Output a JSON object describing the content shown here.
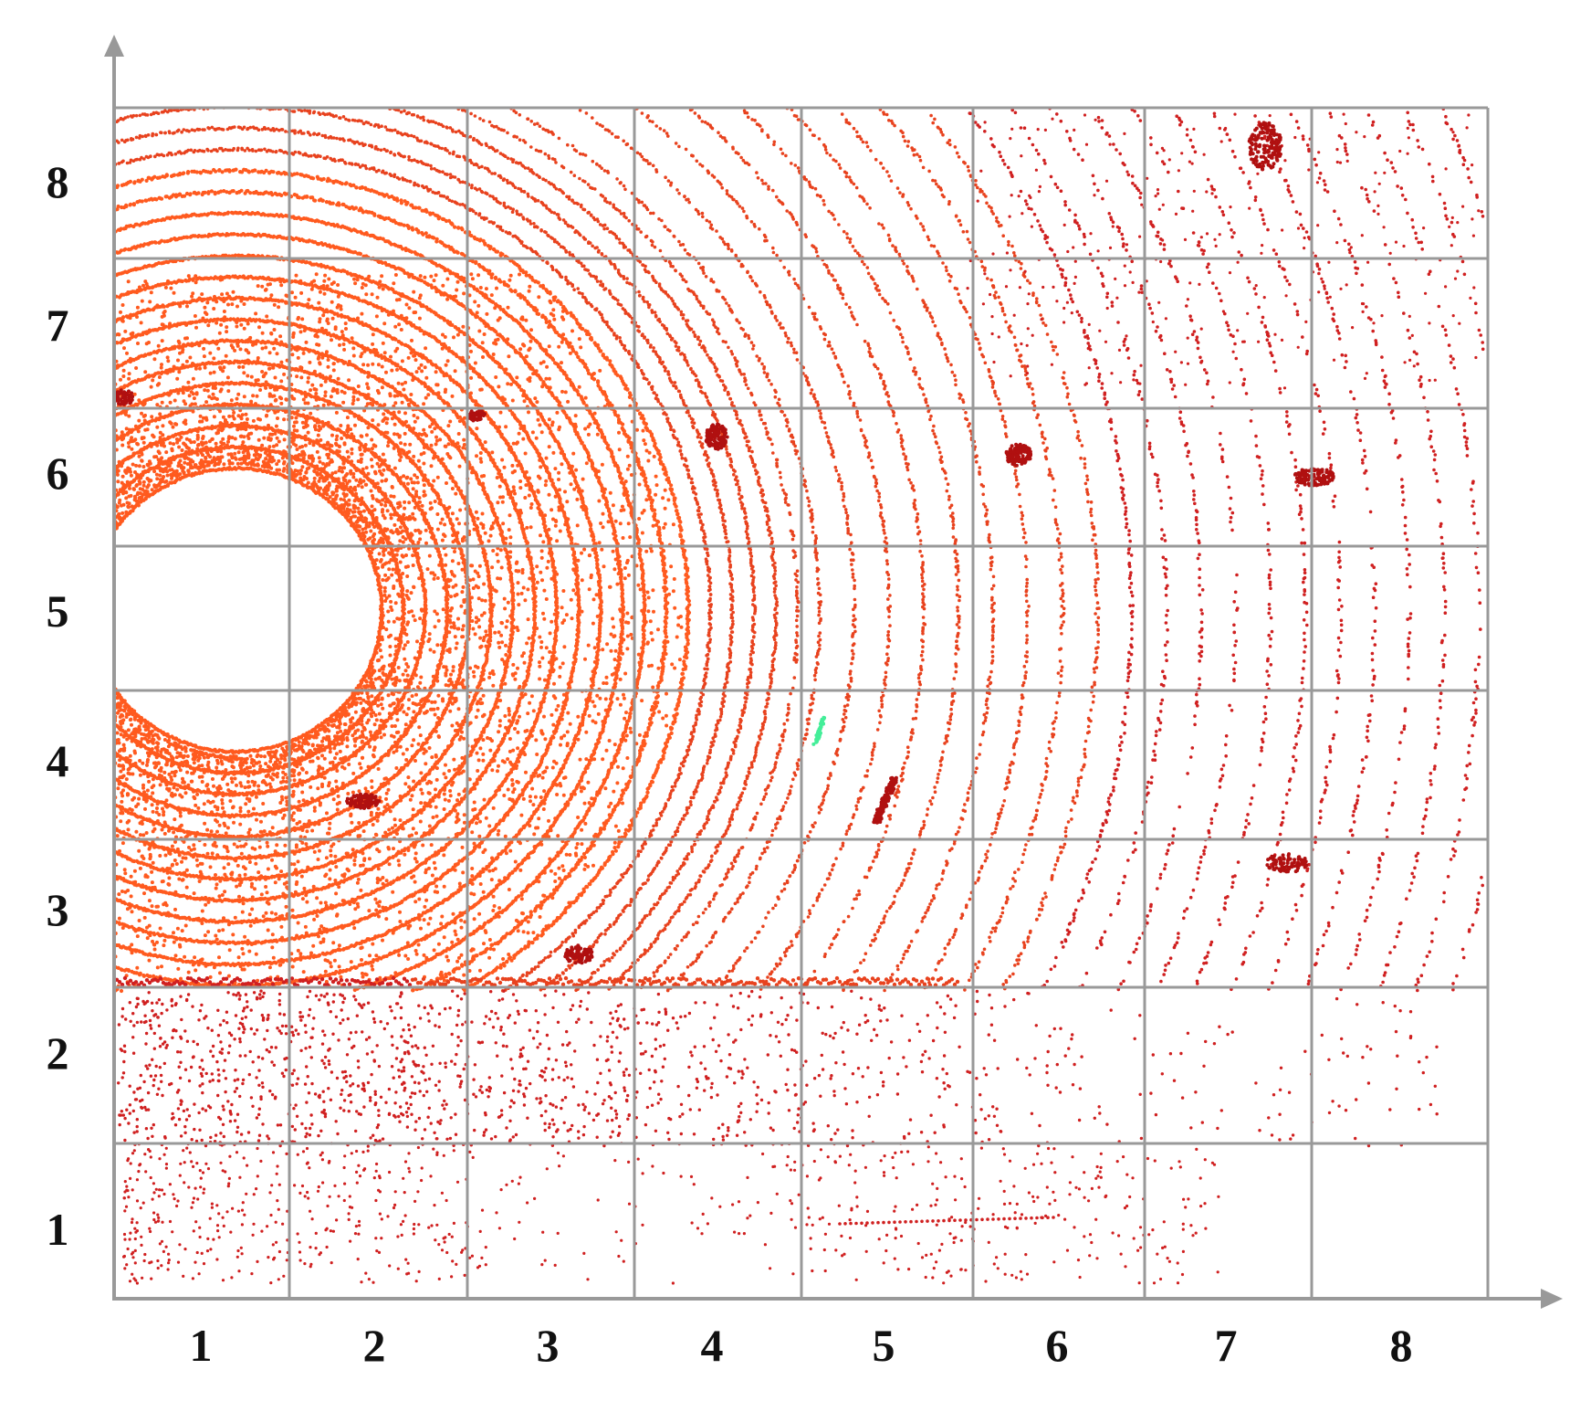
{
  "grid": {
    "columns": 8,
    "rows": 8,
    "x_labels": [
      "1",
      "2",
      "3",
      "4",
      "5",
      "6",
      "7",
      "8"
    ],
    "y_labels": [
      "1",
      "2",
      "3",
      "4",
      "5",
      "6",
      "7",
      "8"
    ]
  },
  "colors": {
    "background": "#ffffff",
    "grid_line": "#999999",
    "axis": "#999999",
    "point_near": "#ff5a1f",
    "point_mid": "#e8421e",
    "point_far": "#d02020",
    "point_object": "#b01010",
    "point_green": "#44ee99",
    "label": "#111111"
  },
  "legend": null,
  "title": null
}
